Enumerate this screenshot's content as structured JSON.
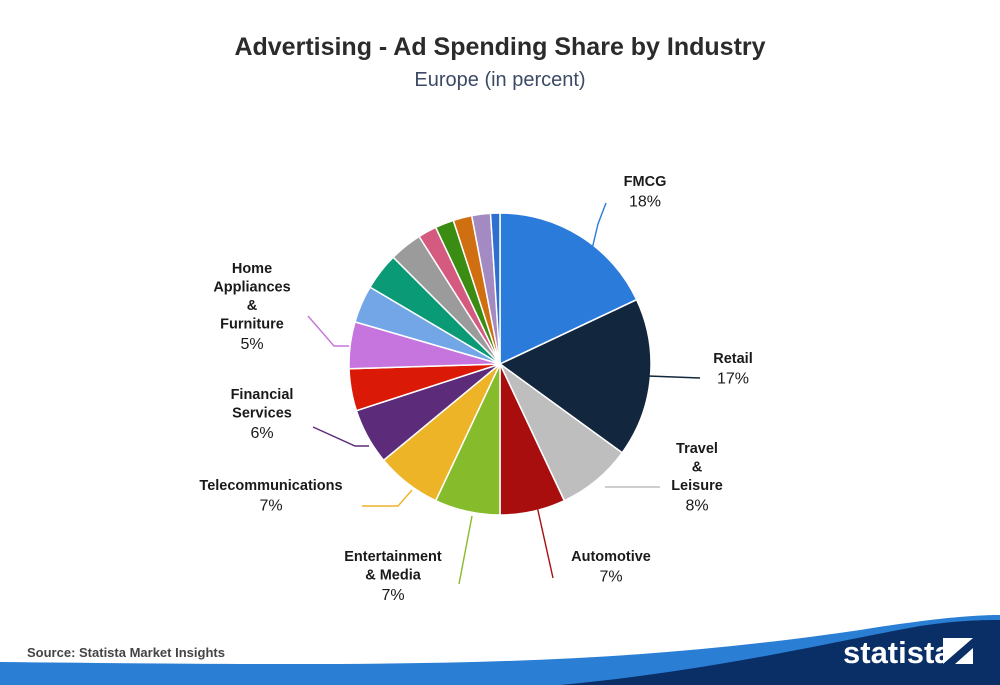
{
  "chart_data": {
    "type": "pie",
    "title": "Advertising - Ad Spending Share by Industry",
    "subtitle": "Europe (in percent)",
    "unit": "%",
    "slices": [
      {
        "label": "FMCG",
        "value": 18,
        "color": "#2b7bdb"
      },
      {
        "label": "Retail",
        "value": 17,
        "color": "#12263d"
      },
      {
        "label": "Travel & Leisure",
        "value": 8,
        "color": "#bebebe"
      },
      {
        "label": "Automotive",
        "value": 7,
        "color": "#a80e0e"
      },
      {
        "label": "Entertainment & Media",
        "value": 7,
        "color": "#86bb2b"
      },
      {
        "label": "Telecommunications",
        "value": 7,
        "color": "#edb428"
      },
      {
        "label": "Financial Services",
        "value": 6,
        "color": "#5c2b7a"
      },
      {
        "label": "",
        "value": 4.5,
        "color": "#da1a06"
      },
      {
        "label": "Home Appliances & Furniture",
        "value": 5,
        "color": "#c775de"
      },
      {
        "label": "",
        "value": 4,
        "color": "#72a6e6"
      },
      {
        "label": "",
        "value": 4,
        "color": "#0a9a76"
      },
      {
        "label": "",
        "value": 3.5,
        "color": "#9b9b9b"
      },
      {
        "label": "",
        "value": 2,
        "color": "#d45a80"
      },
      {
        "label": "",
        "value": 2,
        "color": "#3a8c12"
      },
      {
        "label": "",
        "value": 2,
        "color": "#d06f12"
      },
      {
        "label": "",
        "value": 2,
        "color": "#a48ac2"
      },
      {
        "label": "",
        "value": 1,
        "color": "#2f6fcf"
      }
    ]
  },
  "labels": [
    {
      "lines": [
        "FMCG"
      ],
      "value": "18%",
      "color": "#2b7bdb"
    },
    {
      "lines": [
        "Retail"
      ],
      "value": "17%",
      "color": "#12263d"
    },
    {
      "lines": [
        "Travel",
        "&",
        "Leisure"
      ],
      "value": "8%",
      "color": "#bebebe"
    },
    {
      "lines": [
        "Automotive"
      ],
      "value": "7%",
      "color": "#a80e0e"
    },
    {
      "lines": [
        "Entertainment",
        "& Media"
      ],
      "value": "7%",
      "color": "#86bb2b"
    },
    {
      "lines": [
        "Telecommunications"
      ],
      "value": "7%",
      "color": "#edb428"
    },
    {
      "lines": [
        "Financial",
        "Services"
      ],
      "value": "6%",
      "color": "#5c2b7a"
    },
    {
      "lines": [
        "Home",
        "Appliances",
        "&",
        "Furniture"
      ],
      "value": "5%",
      "color": "#c775de"
    }
  ],
  "footer": {
    "source": "Source: Statista Market Insights",
    "brand": "statista",
    "band_color": "#0a2f67",
    "accent_color": "#2a7fd4"
  }
}
